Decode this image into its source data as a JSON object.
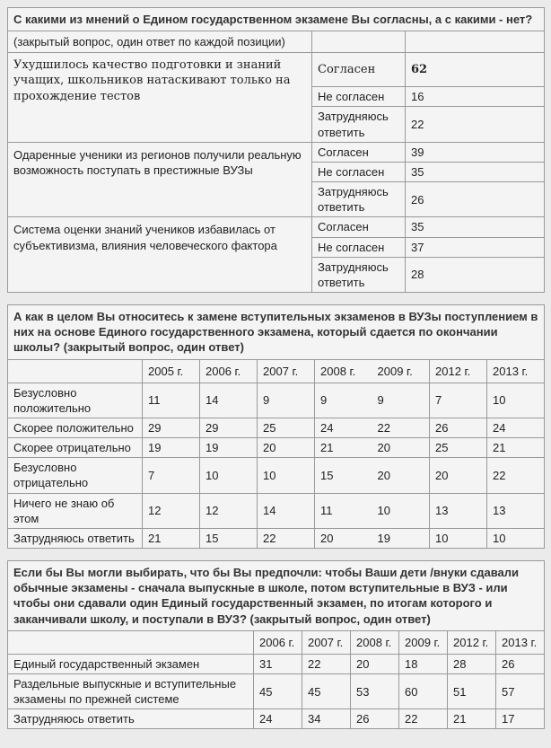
{
  "theme": {
    "page_background": "#ebebeb",
    "cell_background": "#f4f4f4",
    "border_color": "#999999",
    "text_color": "#1f1f1f",
    "title_color": "#333333"
  },
  "table1": {
    "title": "С какими из мнений о Едином государственном экзамене Вы согласны, а с какими - нет?",
    "subtitle": "(закрытый вопрос, один ответ по каждой позиции)",
    "answer_labels": [
      "Согласен",
      "Не согласен",
      "Затрудняюсь ответить"
    ],
    "groups": [
      {
        "statement": "Ухудшилось качество подготовки и знаний учащих, школьников натаскивают только на прохождение тестов",
        "values": [
          "62",
          "16",
          "22"
        ],
        "serif": true
      },
      {
        "statement": "Одаренные ученики из регионов получили реальную возможность поступать в престижные ВУЗы",
        "values": [
          "39",
          "35",
          "26"
        ],
        "serif": false
      },
      {
        "statement": "Система оценки знаний учеников избавилась от субъективизма, влияния человеческого фактора",
        "values": [
          "35",
          "37",
          "28"
        ],
        "serif": false
      }
    ]
  },
  "table2": {
    "title": "А как в целом Вы относитесь к замене вступительных экзаменов в ВУЗы поступлением в них на основе Единого государственного экзамена, который сдается по окончании школы? (закрытый вопрос, один ответ)",
    "columns": [
      "2005 г.",
      "2006 г.",
      "2007 г.",
      "2008 г.",
      "2009 г.",
      "2012 г.",
      "2013 г."
    ],
    "merged_border_after_column_index": 3,
    "rows": [
      {
        "label": "Безусловно положительно",
        "values": [
          "11",
          "14",
          "9",
          "9",
          "9",
          "7",
          "10"
        ]
      },
      {
        "label": "Скорее положительно",
        "values": [
          "29",
          "29",
          "25",
          "24",
          "22",
          "26",
          "24"
        ]
      },
      {
        "label": "Скорее отрицательно",
        "values": [
          "19",
          "19",
          "20",
          "21",
          "20",
          "25",
          "21"
        ]
      },
      {
        "label": "Безусловно отрицательно",
        "values": [
          "7",
          "10",
          "10",
          "15",
          "20",
          "20",
          "22"
        ]
      },
      {
        "label": "Ничего не знаю об этом",
        "values": [
          "12",
          "12",
          "14",
          "11",
          "10",
          "13",
          "13"
        ]
      },
      {
        "label": "Затрудняюсь ответить",
        "values": [
          "21",
          "15",
          "22",
          "20",
          "19",
          "10",
          "10"
        ]
      }
    ]
  },
  "table3": {
    "title": "Если бы Вы могли выбирать, что бы Вы предпочли: чтобы Ваши дети /внуки сдавали обычные экзамены - сначала выпускные в школе, потом вступительные в ВУЗ - или чтобы они сдавали один Единый государственный экзамен, по итогам которого и заканчивали школу, и поступали в ВУЗ? (закрытый вопрос, один ответ)",
    "columns": [
      "2006 г.",
      "2007 г.",
      "2008 г.",
      "2009 г.",
      "2012 г.",
      "2013 г."
    ],
    "rows": [
      {
        "label": "Единый государственный экзамен",
        "values": [
          "31",
          "22",
          "20",
          "18",
          "28",
          "26"
        ]
      },
      {
        "label": "Раздельные выпускные и вступительные экзамены по прежней системе",
        "values": [
          "45",
          "45",
          "53",
          "60",
          "51",
          "57"
        ]
      },
      {
        "label": "Затрудняюсь ответить",
        "values": [
          "24",
          "34",
          "26",
          "22",
          "21",
          "17"
        ]
      }
    ]
  }
}
